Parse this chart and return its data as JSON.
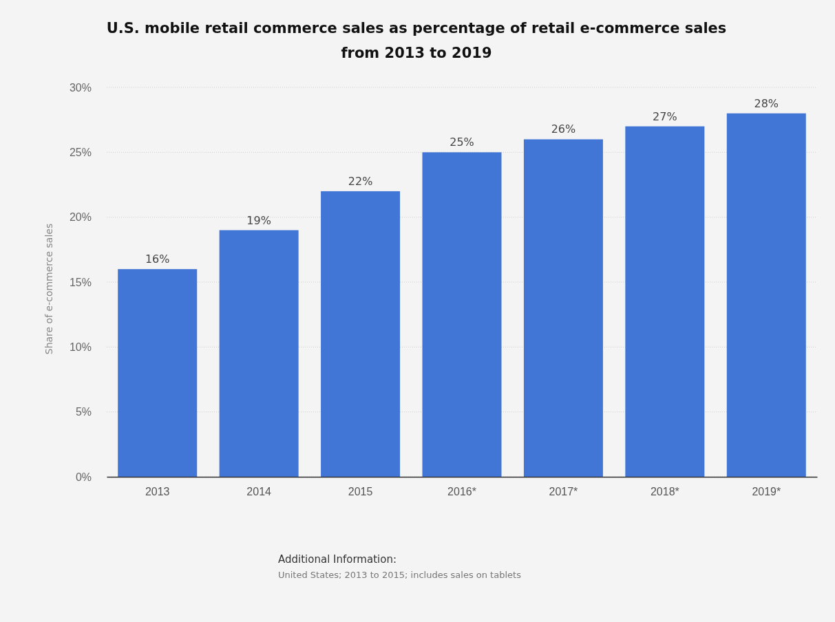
{
  "chart_data": {
    "type": "bar",
    "title": "U.S. mobile retail commerce sales as percentage of retail e-commerce sales from 2013 to 2019",
    "ylabel": "Share of e-commerce sales",
    "categories": [
      "2013",
      "2014",
      "2015",
      "2016*",
      "2017*",
      "2018*",
      "2019*"
    ],
    "values": [
      16,
      19,
      22,
      25,
      26,
      27,
      28
    ],
    "value_labels": [
      "16%",
      "19%",
      "22%",
      "25%",
      "26%",
      "27%",
      "28%"
    ],
    "color": "#4175d6",
    "ylim": [
      0,
      30
    ],
    "yticks": [
      {
        "value": 0,
        "label": "0%"
      },
      {
        "value": 5,
        "label": "5%"
      },
      {
        "value": 10,
        "label": "10%"
      },
      {
        "value": 15,
        "label": "15%"
      },
      {
        "value": 20,
        "label": "20%"
      },
      {
        "value": 25,
        "label": "25%"
      },
      {
        "value": 30,
        "label": "30%"
      }
    ],
    "grid": "y",
    "annotations": [
      "Additional Information:",
      "United States; 2013 to 2015; includes sales on tablets"
    ]
  }
}
